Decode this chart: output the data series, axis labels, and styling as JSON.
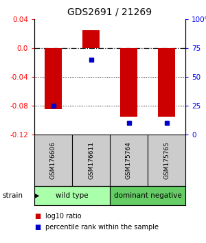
{
  "title": "GDS2691 / 21269",
  "samples": [
    "GSM176606",
    "GSM176611",
    "GSM175764",
    "GSM175765"
  ],
  "log10_ratio": [
    -0.085,
    0.025,
    -0.095,
    -0.095
  ],
  "percentile_rank": [
    25,
    65,
    10,
    10
  ],
  "groups": [
    {
      "label": "wild type",
      "samples": [
        0,
        1
      ],
      "color": "#aaffaa"
    },
    {
      "label": "dominant negative",
      "samples": [
        2,
        3
      ],
      "color": "#66cc66"
    }
  ],
  "bar_color": "#cc0000",
  "dot_color": "#0000cc",
  "ylim_left": [
    -0.12,
    0.04
  ],
  "ylim_right": [
    0,
    100
  ],
  "yticks_left": [
    -0.12,
    -0.08,
    -0.04,
    0.0,
    0.04
  ],
  "yticks_right": [
    0,
    25,
    50,
    75,
    100
  ],
  "ytick_labels_right": [
    "0",
    "25",
    "50",
    "75",
    "100%"
  ],
  "hline_dashdot": 0.0,
  "hlines_dotted": [
    -0.04,
    -0.08
  ],
  "background_color": "#ffffff",
  "sample_bg_color": "#cccccc",
  "bar_width": 0.45,
  "strain_label": "strain",
  "legend_items": [
    {
      "color": "#cc0000",
      "label": "log10 ratio"
    },
    {
      "color": "#0000cc",
      "label": "percentile rank within the sample"
    }
  ]
}
